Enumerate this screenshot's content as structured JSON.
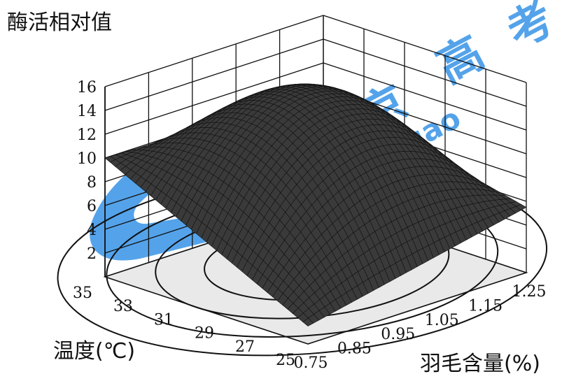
{
  "chart_data": {
    "type": "surface",
    "zlabel": "酶活相对值",
    "xlabel": "温度(℃)",
    "ylabel": "羽毛含量(%)",
    "x_ticks": [
      "35",
      "33",
      "31",
      "29",
      "27",
      "25"
    ],
    "y_ticks": [
      "0.75",
      "0.85",
      "0.95",
      "1.05",
      "1.15",
      "1.25"
    ],
    "z_ticks": [
      "16",
      "14",
      "12",
      "10",
      "8",
      "6",
      "4",
      "2"
    ],
    "x_range": [
      25,
      35
    ],
    "y_range": [
      0.75,
      1.25
    ],
    "z_range": [
      0,
      16
    ],
    "grid": true,
    "corner_values": [
      {
        "temperature": 35,
        "feather": 0.75,
        "value": 10
      },
      {
        "temperature": 35,
        "feather": 1.25,
        "value": 9.5
      },
      {
        "temperature": 25,
        "feather": 0.75,
        "value": 1.5
      },
      {
        "temperature": 25,
        "feather": 1.25,
        "value": 5.5
      }
    ],
    "peak": {
      "value": 14.5
    },
    "contour_levels": 5
  },
  "watermark": {
    "chars": [
      "北",
      "京",
      "高",
      "考"
    ],
    "url": "www.gao",
    "colors": {
      "blue": "#2f8fe6",
      "yellow": "#f3c35a"
    }
  }
}
